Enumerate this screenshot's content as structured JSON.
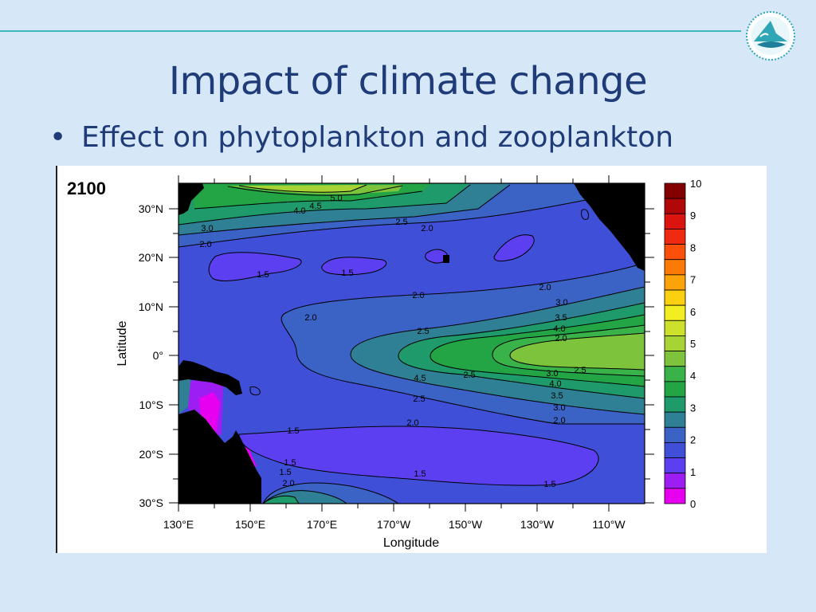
{
  "slide": {
    "title": "Impact of climate change",
    "bullet": "Effect on phytoplankton and zooplankton",
    "year_label": "2100"
  },
  "colors": {
    "title": "#1f3b78",
    "rule": "#3db8b8",
    "land": "#000000"
  },
  "icons": [
    "logo-emblem-icon"
  ],
  "chart_data": {
    "type": "heatmap",
    "title": "",
    "xlabel": "Longitude",
    "ylabel": "Latitude",
    "x_ticks": [
      "130°E",
      "150°E",
      "170°E",
      "170°W",
      "150°W",
      "130°W",
      "110°W"
    ],
    "y_ticks": [
      "30°N",
      "20°N",
      "10°N",
      "0°",
      "10°S",
      "20°S",
      "30°S"
    ],
    "xlim": [
      "130°E",
      "100°W"
    ],
    "ylim": [
      "30°S",
      "35°N"
    ],
    "colorbar": {
      "min": 0,
      "max": 10,
      "step": 0.5,
      "tick_labels": [
        "0",
        "1",
        "2",
        "3",
        "4",
        "5",
        "6",
        "7",
        "8",
        "9",
        "10"
      ],
      "colors": [
        "#e700ef",
        "#9c1ef2",
        "#5b3ff0",
        "#3f4fd8",
        "#3b62c5",
        "#2f7f95",
        "#1f9a6a",
        "#23a445",
        "#3ab24a",
        "#7dc43c",
        "#a8d335",
        "#cde02c",
        "#f2ee22",
        "#fbd010",
        "#fca30a",
        "#fb7a08",
        "#fb4f0a",
        "#f02a10",
        "#db1410",
        "#b00808",
        "#830000"
      ]
    },
    "contour_labels": [
      "5.0",
      "4.5",
      "4.0",
      "3.0",
      "2.5",
      "2.0",
      "2.0",
      "1.5",
      "1.5",
      "2.0",
      "2.0",
      "2.0",
      "2.5",
      "3.0",
      "3.5",
      "4.0",
      "2.0",
      "2.5",
      "4.5",
      "2.5",
      "3.0",
      "4.0",
      "3.5",
      "3.0",
      "2.5",
      "2.0",
      "2.0",
      "1.5",
      "1.5",
      "1.5",
      "1.5",
      "1.5",
      "2.0",
      "2.5"
    ],
    "grid": false,
    "legend_position": "right"
  }
}
